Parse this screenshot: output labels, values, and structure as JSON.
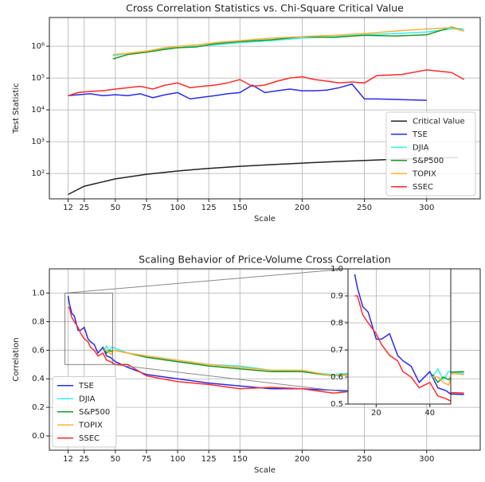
{
  "chart_data": [
    {
      "type": "line",
      "title": "Cross Correlation Statistics vs. Chi-Square Critical Value",
      "xlabel": "Scale",
      "ylabel": "Test Statistic",
      "log_scale": true,
      "grid": true,
      "legend": "lower right",
      "xlim": [
        -3,
        343
      ],
      "xticks": [
        12,
        25,
        50,
        75,
        100,
        125,
        150,
        200,
        250,
        300
      ],
      "ylim": [
        16,
        8000000
      ],
      "yticks": [
        {
          "value": 100,
          "label": "10²"
        },
        {
          "value": 1000,
          "label": "10³"
        },
        {
          "value": 10000,
          "label": "10⁴"
        },
        {
          "value": 100000,
          "label": "10⁵"
        },
        {
          "value": 1000000,
          "label": "10⁶"
        }
      ],
      "series": [
        {
          "name": "Critical Value",
          "color": "#222222",
          "x": [
            12,
            25,
            50,
            75,
            100,
            125,
            150,
            175,
            200,
            225,
            250,
            275,
            300,
            325
          ],
          "values": [
            22,
            40,
            68,
            95,
            120,
            145,
            168,
            190,
            212,
            235,
            258,
            280,
            300,
            320
          ]
        },
        {
          "name": "TSE",
          "color": "#2a2ae8",
          "x": [
            12,
            20,
            30,
            40,
            50,
            60,
            70,
            80,
            90,
            100,
            110,
            120,
            130,
            140,
            150,
            160,
            170,
            180,
            190,
            200,
            210,
            220,
            230,
            240,
            250,
            260,
            280,
            300
          ],
          "values": [
            28000,
            30000,
            32000,
            28000,
            30000,
            28000,
            32000,
            24000,
            30000,
            35000,
            22000,
            25000,
            28000,
            32000,
            35000,
            60000,
            35000,
            40000,
            45000,
            40000,
            40000,
            42000,
            50000,
            65000,
            22000,
            22000,
            21000,
            20000
          ]
        },
        {
          "name": "DJIA",
          "color": "#33f0f0",
          "x": [
            48,
            60,
            75,
            90,
            100,
            115,
            130,
            150,
            175,
            200,
            225,
            250,
            275,
            300,
            320,
            330
          ],
          "values": [
            500000,
            600000,
            700000,
            850000,
            900000,
            1000000,
            1100000,
            1300000,
            1500000,
            1800000,
            2000000,
            2300000,
            2500000,
            2800000,
            3500000,
            3500000
          ]
        },
        {
          "name": "S&P500",
          "color": "#1f991f",
          "x": [
            48,
            60,
            75,
            90,
            100,
            115,
            130,
            150,
            175,
            200,
            225,
            250,
            275,
            300,
            320,
            330
          ],
          "values": [
            400000,
            550000,
            650000,
            800000,
            900000,
            950000,
            1200000,
            1400000,
            1600000,
            2000000,
            1900000,
            2200000,
            2100000,
            2300000,
            4000000,
            3000000
          ]
        },
        {
          "name": "TOPIX",
          "color": "#ffb03b",
          "x": [
            48,
            60,
            75,
            90,
            100,
            115,
            130,
            150,
            175,
            200,
            225,
            250,
            275,
            300,
            320,
            330
          ],
          "values": [
            550000,
            600000,
            700000,
            900000,
            1000000,
            1100000,
            1300000,
            1500000,
            1800000,
            2000000,
            2200000,
            2500000,
            3000000,
            3500000,
            3800000,
            3000000
          ]
        },
        {
          "name": "SSEC",
          "color": "#ff2a2a",
          "x": [
            12,
            20,
            30,
            40,
            50,
            60,
            70,
            80,
            90,
            100,
            110,
            120,
            130,
            140,
            150,
            160,
            170,
            180,
            190,
            200,
            210,
            220,
            230,
            240,
            250,
            260,
            280,
            300,
            320,
            330
          ],
          "values": [
            28000,
            35000,
            38000,
            40000,
            45000,
            50000,
            55000,
            45000,
            60000,
            70000,
            50000,
            55000,
            60000,
            70000,
            90000,
            55000,
            60000,
            80000,
            100000,
            110000,
            90000,
            80000,
            70000,
            75000,
            70000,
            120000,
            130000,
            180000,
            150000,
            90000
          ]
        }
      ]
    },
    {
      "type": "line",
      "title": "Scaling Behavior of Price-Volume Cross Correlation",
      "xlabel": "Scale",
      "ylabel": "Correlation",
      "log_scale": false,
      "grid": true,
      "legend": "lower left",
      "xlim": [
        -3,
        343
      ],
      "xticks": [
        12,
        25,
        50,
        75,
        100,
        125,
        150,
        200,
        250,
        300
      ],
      "ylim": [
        -0.1,
        1.17
      ],
      "yticks": [
        {
          "value": 0,
          "label": "0.0"
        },
        0.2,
        0.4,
        0.6,
        0.8,
        {
          "value": 1,
          "label": "1.0"
        }
      ],
      "inset": {
        "xlim": [
          9.5,
          47.8
        ],
        "ylim": [
          0.5,
          1.0
        ],
        "xticks": [
          20,
          40
        ],
        "yticks": [
          0.5,
          0.6,
          0.7,
          0.8,
          0.9,
          {
            "value": 1,
            "label": "1.0"
          }
        ]
      },
      "series": [
        {
          "name": "TSE",
          "color": "#2a2ae8",
          "x": [
            12,
            13,
            15,
            17,
            20,
            22,
            25,
            28,
            30,
            33,
            36,
            40,
            43,
            46,
            50,
            60,
            75,
            100,
            125,
            150,
            175,
            200,
            225,
            250,
            300,
            330
          ],
          "values": [
            0.98,
            0.93,
            0.86,
            0.84,
            0.74,
            0.74,
            0.76,
            0.68,
            0.66,
            0.64,
            0.58,
            0.62,
            0.56,
            0.55,
            0.52,
            0.48,
            0.43,
            0.4,
            0.37,
            0.35,
            0.33,
            0.33,
            0.32,
            0.31,
            0.3,
            0.29
          ]
        },
        {
          "name": "DJIA",
          "color": "#33f0f0",
          "x": [
            41,
            43,
            45,
            47,
            48,
            60,
            75,
            100,
            125,
            150,
            175,
            200,
            225,
            250,
            275,
            300,
            330
          ],
          "values": [
            0.6,
            0.63,
            0.59,
            0.62,
            0.62,
            0.58,
            0.56,
            0.52,
            0.5,
            0.49,
            0.46,
            0.45,
            0.43,
            0.45,
            0.43,
            0.46,
            0.44
          ]
        },
        {
          "name": "S&P500",
          "color": "#1f991f",
          "x": [
            41,
            43,
            45,
            47,
            48,
            60,
            75,
            100,
            125,
            150,
            175,
            200,
            225,
            250,
            275,
            300,
            330
          ],
          "values": [
            0.61,
            0.58,
            0.6,
            0.59,
            0.6,
            0.58,
            0.55,
            0.52,
            0.49,
            0.47,
            0.45,
            0.45,
            0.42,
            0.44,
            0.42,
            0.44,
            0.45
          ]
        },
        {
          "name": "TOPIX",
          "color": "#ffb03b",
          "x": [
            41,
            43,
            45,
            47,
            48,
            60,
            75,
            100,
            125,
            150,
            175,
            200,
            225,
            250,
            275,
            300,
            330
          ],
          "values": [
            0.6,
            0.6,
            0.58,
            0.57,
            0.6,
            0.58,
            0.56,
            0.53,
            0.5,
            0.48,
            0.46,
            0.46,
            0.42,
            0.45,
            0.43,
            0.45,
            0.43
          ]
        },
        {
          "name": "SSEC",
          "color": "#ff2a2a",
          "x": [
            12,
            13,
            15,
            17,
            20,
            22,
            25,
            28,
            30,
            33,
            36,
            40,
            43,
            46,
            50,
            60,
            75,
            100,
            125,
            150,
            175,
            200,
            225,
            250,
            300,
            330
          ],
          "values": [
            0.9,
            0.9,
            0.83,
            0.8,
            0.76,
            0.72,
            0.68,
            0.66,
            0.62,
            0.6,
            0.56,
            0.58,
            0.53,
            0.52,
            0.5,
            0.5,
            0.42,
            0.38,
            0.36,
            0.33,
            0.34,
            0.33,
            0.3,
            0.32,
            0.31,
            0.3
          ]
        }
      ]
    }
  ]
}
